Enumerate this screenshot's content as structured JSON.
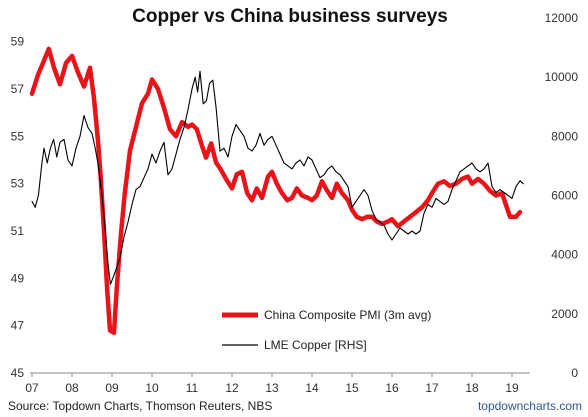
{
  "chart_data": {
    "type": "line",
    "title": "Copper vs China business surveys",
    "x_tick_labels": [
      "07",
      "08",
      "09",
      "10",
      "11",
      "12",
      "13",
      "14",
      "15",
      "16",
      "17",
      "18",
      "19"
    ],
    "y_left_ticks": [
      45,
      47,
      49,
      51,
      53,
      55,
      57,
      59
    ],
    "y_right_ticks": [
      0,
      2000,
      4000,
      6000,
      8000,
      10000,
      12000
    ],
    "ylim_left": [
      45,
      60
    ],
    "ylim_right": [
      0,
      12000
    ],
    "xlim": [
      2007.0,
      2019.35
    ],
    "legend_position": "lower-center",
    "grid": false,
    "series": [
      {
        "name": "China Composite PMI (3m avg)",
        "axis": "left",
        "color": "#e8141a",
        "points": [
          [
            2007.0,
            56.8
          ],
          [
            2007.15,
            57.6
          ],
          [
            2007.3,
            58.2
          ],
          [
            2007.42,
            58.7
          ],
          [
            2007.55,
            57.9
          ],
          [
            2007.7,
            57.2
          ],
          [
            2007.85,
            58.1
          ],
          [
            2008.0,
            58.4
          ],
          [
            2008.15,
            57.7
          ],
          [
            2008.3,
            57.1
          ],
          [
            2008.45,
            57.9
          ],
          [
            2008.55,
            56.6
          ],
          [
            2008.65,
            54.8
          ],
          [
            2008.72,
            53.2
          ],
          [
            2008.8,
            51.0
          ],
          [
            2008.88,
            48.5
          ],
          [
            2008.95,
            46.8
          ],
          [
            2009.05,
            46.7
          ],
          [
            2009.12,
            48.6
          ],
          [
            2009.22,
            50.8
          ],
          [
            2009.32,
            52.6
          ],
          [
            2009.45,
            54.4
          ],
          [
            2009.6,
            55.4
          ],
          [
            2009.75,
            56.4
          ],
          [
            2009.9,
            56.8
          ],
          [
            2010.0,
            57.4
          ],
          [
            2010.15,
            57.0
          ],
          [
            2010.3,
            56.2
          ],
          [
            2010.45,
            55.3
          ],
          [
            2010.6,
            55.0
          ],
          [
            2010.75,
            55.6
          ],
          [
            2010.9,
            55.4
          ],
          [
            2011.0,
            55.5
          ],
          [
            2011.12,
            55.3
          ],
          [
            2011.25,
            54.6
          ],
          [
            2011.35,
            54.1
          ],
          [
            2011.48,
            54.7
          ],
          [
            2011.6,
            53.9
          ],
          [
            2011.72,
            53.6
          ],
          [
            2011.85,
            53.2
          ],
          [
            2012.0,
            52.8
          ],
          [
            2012.12,
            53.4
          ],
          [
            2012.25,
            53.5
          ],
          [
            2012.38,
            52.6
          ],
          [
            2012.5,
            52.3
          ],
          [
            2012.62,
            52.8
          ],
          [
            2012.75,
            52.4
          ],
          [
            2012.9,
            53.3
          ],
          [
            2013.0,
            53.5
          ],
          [
            2013.12,
            53.0
          ],
          [
            2013.25,
            52.6
          ],
          [
            2013.38,
            52.3
          ],
          [
            2013.5,
            52.4
          ],
          [
            2013.62,
            52.8
          ],
          [
            2013.75,
            52.5
          ],
          [
            2013.9,
            52.4
          ],
          [
            2014.0,
            52.3
          ],
          [
            2014.12,
            52.5
          ],
          [
            2014.25,
            53.1
          ],
          [
            2014.38,
            52.7
          ],
          [
            2014.5,
            52.4
          ],
          [
            2014.62,
            53.0
          ],
          [
            2014.75,
            52.6
          ],
          [
            2014.9,
            52.3
          ],
          [
            2015.0,
            51.9
          ],
          [
            2015.12,
            51.6
          ],
          [
            2015.25,
            51.5
          ],
          [
            2015.38,
            51.6
          ],
          [
            2015.5,
            51.6
          ],
          [
            2015.62,
            51.4
          ],
          [
            2015.75,
            51.3
          ],
          [
            2015.9,
            51.4
          ],
          [
            2016.0,
            51.5
          ],
          [
            2016.15,
            51.2
          ],
          [
            2016.3,
            51.4
          ],
          [
            2016.45,
            51.6
          ],
          [
            2016.6,
            51.8
          ],
          [
            2016.75,
            52.0
          ],
          [
            2016.9,
            52.3
          ],
          [
            2017.0,
            52.6
          ],
          [
            2017.15,
            53.0
          ],
          [
            2017.3,
            53.1
          ],
          [
            2017.45,
            52.9
          ],
          [
            2017.6,
            53.0
          ],
          [
            2017.75,
            53.2
          ],
          [
            2017.9,
            53.3
          ],
          [
            2018.0,
            53.0
          ],
          [
            2018.15,
            53.2
          ],
          [
            2018.3,
            53.0
          ],
          [
            2018.45,
            52.7
          ],
          [
            2018.6,
            52.5
          ],
          [
            2018.75,
            52.6
          ],
          [
            2018.85,
            52.1
          ],
          [
            2018.95,
            51.6
          ],
          [
            2019.1,
            51.6
          ],
          [
            2019.2,
            51.8
          ]
        ]
      },
      {
        "name": "LME Copper [RHS]",
        "axis": "right",
        "color": "#000000",
        "points": [
          [
            2007.0,
            5800
          ],
          [
            2007.08,
            5600
          ],
          [
            2007.16,
            6000
          ],
          [
            2007.24,
            7000
          ],
          [
            2007.3,
            7600
          ],
          [
            2007.38,
            7100
          ],
          [
            2007.46,
            7600
          ],
          [
            2007.54,
            7900
          ],
          [
            2007.62,
            7300
          ],
          [
            2007.7,
            7800
          ],
          [
            2007.8,
            7900
          ],
          [
            2007.9,
            7200
          ],
          [
            2008.0,
            7000
          ],
          [
            2008.1,
            7600
          ],
          [
            2008.2,
            8000
          ],
          [
            2008.3,
            8700
          ],
          [
            2008.4,
            8300
          ],
          [
            2008.5,
            8100
          ],
          [
            2008.58,
            7600
          ],
          [
            2008.66,
            7000
          ],
          [
            2008.75,
            6000
          ],
          [
            2008.82,
            5000
          ],
          [
            2008.9,
            3700
          ],
          [
            2008.96,
            3000
          ],
          [
            2009.02,
            3200
          ],
          [
            2009.1,
            3500
          ],
          [
            2009.2,
            3900
          ],
          [
            2009.3,
            4600
          ],
          [
            2009.4,
            5100
          ],
          [
            2009.5,
            5700
          ],
          [
            2009.6,
            6200
          ],
          [
            2009.7,
            6300
          ],
          [
            2009.8,
            6600
          ],
          [
            2009.9,
            6900
          ],
          [
            2010.0,
            7400
          ],
          [
            2010.1,
            7100
          ],
          [
            2010.2,
            7500
          ],
          [
            2010.3,
            7800
          ],
          [
            2010.4,
            6700
          ],
          [
            2010.5,
            6900
          ],
          [
            2010.6,
            7400
          ],
          [
            2010.7,
            7900
          ],
          [
            2010.8,
            8300
          ],
          [
            2010.9,
            8900
          ],
          [
            2011.0,
            9600
          ],
          [
            2011.08,
            10000
          ],
          [
            2011.14,
            9500
          ],
          [
            2011.2,
            10200
          ],
          [
            2011.28,
            9100
          ],
          [
            2011.36,
            9200
          ],
          [
            2011.44,
            9800
          ],
          [
            2011.52,
            9900
          ],
          [
            2011.6,
            9000
          ],
          [
            2011.7,
            7500
          ],
          [
            2011.8,
            7600
          ],
          [
            2011.9,
            7300
          ],
          [
            2012.0,
            8000
          ],
          [
            2012.1,
            8400
          ],
          [
            2012.2,
            8200
          ],
          [
            2012.3,
            8000
          ],
          [
            2012.4,
            7600
          ],
          [
            2012.5,
            7500
          ],
          [
            2012.6,
            7700
          ],
          [
            2012.7,
            8100
          ],
          [
            2012.8,
            7700
          ],
          [
            2012.9,
            7900
          ],
          [
            2013.0,
            8000
          ],
          [
            2013.1,
            7700
          ],
          [
            2013.2,
            7400
          ],
          [
            2013.3,
            7100
          ],
          [
            2013.4,
            7000
          ],
          [
            2013.5,
            6900
          ],
          [
            2013.6,
            7100
          ],
          [
            2013.7,
            7200
          ],
          [
            2013.8,
            7000
          ],
          [
            2013.9,
            7300
          ],
          [
            2014.0,
            7200
          ],
          [
            2014.1,
            6900
          ],
          [
            2014.2,
            6600
          ],
          [
            2014.3,
            6700
          ],
          [
            2014.4,
            6900
          ],
          [
            2014.5,
            7000
          ],
          [
            2014.6,
            6800
          ],
          [
            2014.7,
            6700
          ],
          [
            2014.8,
            6500
          ],
          [
            2014.9,
            6300
          ],
          [
            2015.0,
            5600
          ],
          [
            2015.1,
            5800
          ],
          [
            2015.2,
            6000
          ],
          [
            2015.3,
            6200
          ],
          [
            2015.4,
            6000
          ],
          [
            2015.5,
            5500
          ],
          [
            2015.6,
            5200
          ],
          [
            2015.7,
            5100
          ],
          [
            2015.8,
            5000
          ],
          [
            2015.9,
            4700
          ],
          [
            2016.0,
            4500
          ],
          [
            2016.1,
            4700
          ],
          [
            2016.2,
            4900
          ],
          [
            2016.3,
            4800
          ],
          [
            2016.4,
            4700
          ],
          [
            2016.5,
            4800
          ],
          [
            2016.6,
            4700
          ],
          [
            2016.7,
            4800
          ],
          [
            2016.8,
            5400
          ],
          [
            2016.9,
            5700
          ],
          [
            2017.0,
            5600
          ],
          [
            2017.1,
            5900
          ],
          [
            2017.2,
            5800
          ],
          [
            2017.3,
            5700
          ],
          [
            2017.4,
            5800
          ],
          [
            2017.5,
            6200
          ],
          [
            2017.6,
            6500
          ],
          [
            2017.7,
            6800
          ],
          [
            2017.8,
            6900
          ],
          [
            2017.9,
            7000
          ],
          [
            2018.0,
            7100
          ],
          [
            2018.1,
            6900
          ],
          [
            2018.2,
            6800
          ],
          [
            2018.3,
            6900
          ],
          [
            2018.4,
            7100
          ],
          [
            2018.5,
            6300
          ],
          [
            2018.6,
            6100
          ],
          [
            2018.7,
            6200
          ],
          [
            2018.8,
            6100
          ],
          [
            2018.9,
            6000
          ],
          [
            2019.0,
            5900
          ],
          [
            2019.1,
            6300
          ],
          [
            2019.2,
            6500
          ],
          [
            2019.28,
            6400
          ]
        ]
      }
    ],
    "footer_source": "Source: Topdown Charts, Thomson Reuters, NBS",
    "watermark": "topdowncharts.com"
  }
}
